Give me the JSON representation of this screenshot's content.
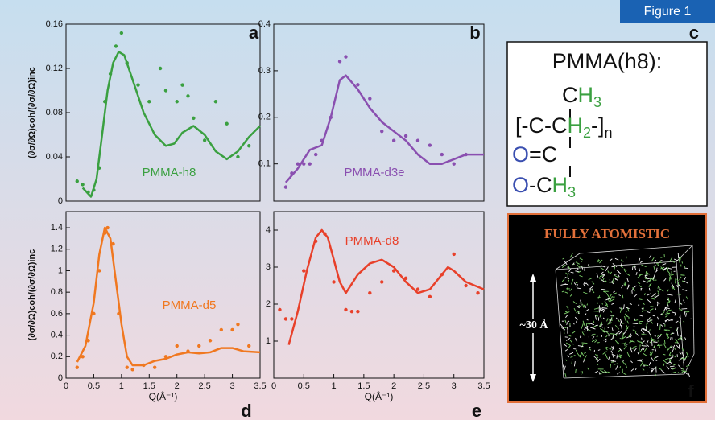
{
  "figure_label": "Figure 1",
  "chart_data": [
    {
      "type": "line",
      "panel_label": "a",
      "annotation": "PMMA-h8",
      "annotation_color": "#3aa040",
      "ylabel": "(∂σ/∂Ω)coh/(∂σ/∂Ω)inc",
      "xlim": [
        0,
        3.5
      ],
      "ylim": [
        0,
        0.16
      ],
      "yticks": [
        0,
        0.04,
        0.08,
        0.12,
        0.16
      ],
      "series": [
        {
          "style": "line",
          "color": "#3aa040",
          "x": [
            0.3,
            0.45,
            0.55,
            0.65,
            0.75,
            0.85,
            0.95,
            1.05,
            1.2,
            1.4,
            1.6,
            1.8,
            1.95,
            2.1,
            2.3,
            2.5,
            2.7,
            2.9,
            3.1,
            3.3,
            3.5
          ],
          "values": [
            0.012,
            0.004,
            0.02,
            0.06,
            0.1,
            0.125,
            0.135,
            0.132,
            0.11,
            0.08,
            0.06,
            0.05,
            0.052,
            0.062,
            0.068,
            0.06,
            0.045,
            0.038,
            0.045,
            0.058,
            0.068
          ]
        },
        {
          "style": "markers",
          "color": "#3aa040",
          "x": [
            0.2,
            0.3,
            0.4,
            0.5,
            0.6,
            0.7,
            0.8,
            0.9,
            1.0,
            1.1,
            1.3,
            1.5,
            1.7,
            1.8,
            2.0,
            2.1,
            2.2,
            2.3,
            2.5,
            2.7,
            2.9,
            3.1,
            3.3
          ],
          "values": [
            0.018,
            0.015,
            0.008,
            0.01,
            0.03,
            0.09,
            0.115,
            0.14,
            0.152,
            0.125,
            0.105,
            0.09,
            0.12,
            0.1,
            0.09,
            0.105,
            0.095,
            0.075,
            0.055,
            0.09,
            0.07,
            0.04,
            0.05
          ]
        }
      ]
    },
    {
      "type": "line",
      "panel_label": "b",
      "annotation": "PMMA-d3e",
      "annotation_color": "#8a4fb0",
      "xlim": [
        0,
        3.5
      ],
      "ylim": [
        0.02,
        0.4
      ],
      "yticks": [
        0.1,
        0.2,
        0.3,
        0.4
      ],
      "series": [
        {
          "style": "line",
          "color": "#8a4fb0",
          "x": [
            0.2,
            0.4,
            0.6,
            0.8,
            0.95,
            1.1,
            1.2,
            1.4,
            1.6,
            1.8,
            2.0,
            2.2,
            2.4,
            2.6,
            2.8,
            3.0,
            3.2,
            3.5
          ],
          "values": [
            0.06,
            0.09,
            0.13,
            0.14,
            0.2,
            0.28,
            0.29,
            0.26,
            0.22,
            0.19,
            0.17,
            0.15,
            0.12,
            0.1,
            0.1,
            0.11,
            0.12,
            0.12
          ]
        },
        {
          "style": "markers",
          "color": "#8a4fb0",
          "x": [
            0.2,
            0.3,
            0.4,
            0.5,
            0.6,
            0.7,
            0.8,
            0.95,
            1.1,
            1.2,
            1.4,
            1.6,
            1.8,
            2.0,
            2.2,
            2.4,
            2.6,
            2.8,
            3.0,
            3.2
          ],
          "values": [
            0.05,
            0.08,
            0.1,
            0.1,
            0.1,
            0.12,
            0.15,
            0.2,
            0.32,
            0.33,
            0.27,
            0.24,
            0.17,
            0.15,
            0.16,
            0.15,
            0.14,
            0.12,
            0.1,
            0.12
          ]
        }
      ]
    },
    {
      "type": "line",
      "panel_label": "d",
      "annotation": "PMMA-d5",
      "annotation_color": "#f07820",
      "ylabel": "(∂σ/∂Ω)coh/(∂σ/∂Ω)inc",
      "xlabel": "Q(Å⁻¹)",
      "xlim": [
        0,
        3.5
      ],
      "ylim": [
        0,
        1.55
      ],
      "yticks": [
        0,
        0.2,
        0.4,
        0.6,
        0.8,
        1,
        1.2,
        1.4
      ],
      "xticks": [
        0,
        0.5,
        1,
        1.5,
        2,
        2.5,
        3,
        3.5
      ],
      "series": [
        {
          "style": "line",
          "color": "#f07820",
          "x": [
            0.2,
            0.35,
            0.5,
            0.6,
            0.7,
            0.8,
            0.9,
            1.0,
            1.1,
            1.2,
            1.4,
            1.6,
            1.8,
            2.0,
            2.2,
            2.4,
            2.6,
            2.8,
            3.0,
            3.2,
            3.5
          ],
          "values": [
            0.15,
            0.3,
            0.7,
            1.15,
            1.4,
            1.3,
            0.9,
            0.5,
            0.2,
            0.12,
            0.12,
            0.16,
            0.18,
            0.22,
            0.24,
            0.23,
            0.24,
            0.28,
            0.28,
            0.25,
            0.24
          ]
        },
        {
          "style": "markers",
          "color": "#f07820",
          "x": [
            0.2,
            0.3,
            0.4,
            0.5,
            0.6,
            0.7,
            0.75,
            0.85,
            0.95,
            1.1,
            1.2,
            1.4,
            1.6,
            1.8,
            2.0,
            2.2,
            2.4,
            2.6,
            2.8,
            3.0,
            3.1,
            3.3
          ],
          "values": [
            0.1,
            0.2,
            0.35,
            0.6,
            1.0,
            1.35,
            1.4,
            1.25,
            0.6,
            0.1,
            0.08,
            0.12,
            0.1,
            0.2,
            0.3,
            0.25,
            0.3,
            0.35,
            0.45,
            0.45,
            0.5,
            0.3
          ]
        }
      ]
    },
    {
      "type": "line",
      "panel_label": "e",
      "annotation": "PMMA-d8",
      "annotation_color": "#e8402a",
      "xlabel": "Q(Å⁻¹)",
      "xlim": [
        0,
        3.5
      ],
      "ylim": [
        0,
        4.5
      ],
      "yticks": [
        1,
        2,
        3,
        4
      ],
      "xticks": [
        0,
        0.5,
        1,
        1.5,
        2,
        2.5,
        3,
        3.5
      ],
      "series": [
        {
          "style": "line",
          "color": "#e8402a",
          "x": [
            0.25,
            0.4,
            0.55,
            0.7,
            0.8,
            0.9,
            1.0,
            1.1,
            1.2,
            1.4,
            1.6,
            1.8,
            2.0,
            2.2,
            2.4,
            2.6,
            2.8,
            2.9,
            3.0,
            3.2,
            3.5
          ],
          "values": [
            0.9,
            1.8,
            2.9,
            3.8,
            4.0,
            3.8,
            3.2,
            2.6,
            2.3,
            2.8,
            3.1,
            3.2,
            3.0,
            2.6,
            2.3,
            2.4,
            2.8,
            3.0,
            2.9,
            2.6,
            2.4
          ]
        },
        {
          "style": "markers",
          "color": "#e8402a",
          "x": [
            0.1,
            0.2,
            0.3,
            0.5,
            0.7,
            0.85,
            1.0,
            1.2,
            1.3,
            1.4,
            1.6,
            1.8,
            2.0,
            2.2,
            2.4,
            2.6,
            2.8,
            3.0,
            3.2,
            3.4
          ],
          "values": [
            1.85,
            1.6,
            1.6,
            2.9,
            3.7,
            3.9,
            2.6,
            1.85,
            1.8,
            1.8,
            2.3,
            2.6,
            2.9,
            2.7,
            2.4,
            2.2,
            2.8,
            3.35,
            2.5,
            2.3
          ]
        }
      ]
    }
  ],
  "structure": {
    "panel_label": "c",
    "title": "PMMA(h8):",
    "lines": [
      [
        {
          "text": "C",
          "color": "#111111"
        },
        {
          "text": "H",
          "color": "#3aa040"
        },
        {
          "text": "3",
          "color": "#3aa040",
          "sub": true
        }
      ],
      [
        {
          "text": "[-C-C",
          "color": "#111111"
        },
        {
          "text": "H",
          "color": "#3aa040"
        },
        {
          "text": "2",
          "color": "#3aa040",
          "sub": true
        },
        {
          "text": "-]",
          "color": "#111111"
        },
        {
          "text": "n",
          "color": "#111111",
          "sub": true
        }
      ],
      [
        {
          "text": "O",
          "color": "#3a4fb0"
        },
        {
          "text": "=C",
          "color": "#111111"
        }
      ],
      [
        {
          "text": "O",
          "color": "#3a4fb0"
        },
        {
          "text": "-C",
          "color": "#111111"
        },
        {
          "text": "H",
          "color": "#3aa040"
        },
        {
          "text": "3",
          "color": "#3aa040",
          "sub": true
        }
      ]
    ]
  },
  "simulation": {
    "panel_label": "f",
    "title": "FULLY ATOMISTIC",
    "size_label": "~30 Å"
  }
}
